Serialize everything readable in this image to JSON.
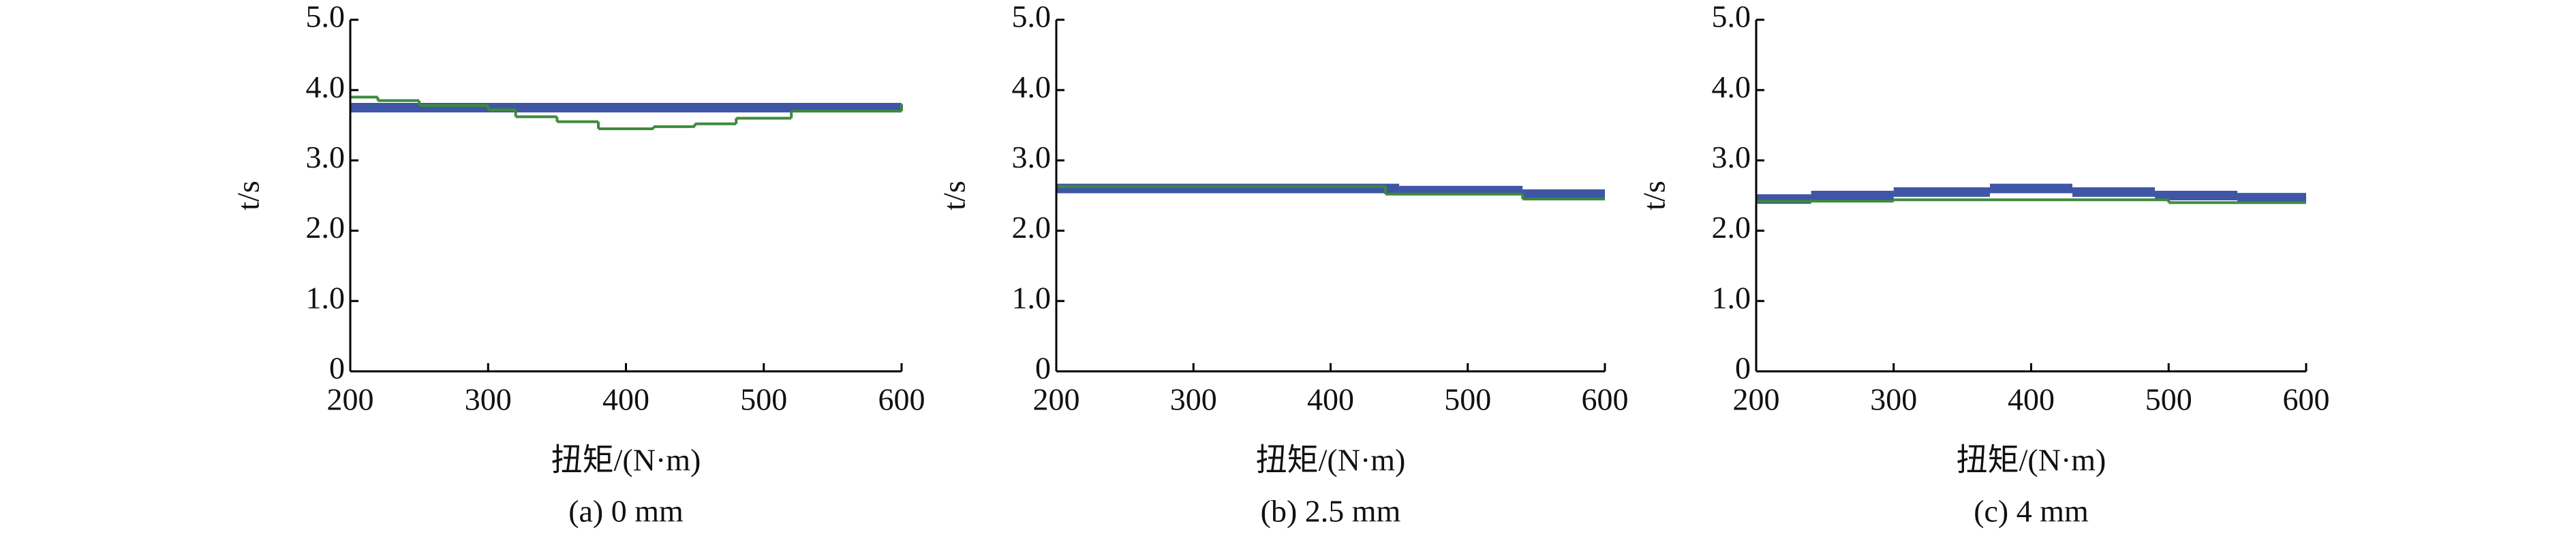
{
  "chart_data": [
    {
      "type": "line",
      "step": "post",
      "xlabel": "扭矩/(N·m)",
      "ylabel": "t/s",
      "caption": "(a) 0 mm",
      "xlim": [
        200,
        600
      ],
      "xticks": [
        200,
        300,
        400,
        500,
        600
      ],
      "ylim": [
        0,
        5
      ],
      "yticks": [
        0,
        {
          "value": 1,
          "label": "1.0"
        },
        {
          "value": 2,
          "label": "2.0"
        },
        {
          "value": 3,
          "label": "3.0"
        },
        {
          "value": 4,
          "label": "4.0"
        },
        {
          "value": 5,
          "label": "5.0"
        }
      ],
      "series": [
        {
          "color": "#3f55a5",
          "linewidth": 14,
          "x": [
            200,
            600
          ],
          "values": [
            3.75,
            3.75
          ]
        },
        {
          "color": "#3d8a3d",
          "linewidth": 4,
          "x": [
            200,
            220,
            250,
            300,
            320,
            350,
            380,
            420,
            450,
            480,
            520,
            600
          ],
          "values": [
            3.9,
            3.85,
            3.78,
            3.72,
            3.62,
            3.55,
            3.45,
            3.48,
            3.52,
            3.6,
            3.7,
            3.8
          ]
        }
      ]
    },
    {
      "type": "line",
      "step": "post",
      "xlabel": "扭矩/(N·m)",
      "ylabel": "t/s",
      "caption": "(b) 2.5 mm",
      "xlim": [
        200,
        600
      ],
      "xticks": [
        200,
        300,
        400,
        500,
        600
      ],
      "ylim": [
        0,
        5
      ],
      "yticks": [
        0,
        {
          "value": 1,
          "label": "1.0"
        },
        {
          "value": 2,
          "label": "2.0"
        },
        {
          "value": 3,
          "label": "3.0"
        },
        {
          "value": 4,
          "label": "4.0"
        },
        {
          "value": 5,
          "label": "5.0"
        }
      ],
      "series": [
        {
          "color": "#3f55a5",
          "linewidth": 14,
          "x": [
            200,
            450,
            540,
            600
          ],
          "values": [
            2.6,
            2.57,
            2.52,
            2.52
          ]
        },
        {
          "color": "#3d8a3d",
          "linewidth": 4,
          "x": [
            200,
            440,
            540,
            600
          ],
          "values": [
            2.63,
            2.52,
            2.45,
            2.45
          ]
        }
      ]
    },
    {
      "type": "line",
      "step": "post",
      "xlabel": "扭矩/(N·m)",
      "ylabel": "t/s",
      "caption": "(c) 4 mm",
      "xlim": [
        200,
        600
      ],
      "xticks": [
        200,
        300,
        400,
        500,
        600
      ],
      "ylim": [
        0,
        5
      ],
      "yticks": [
        0,
        {
          "value": 1,
          "label": "1.0"
        },
        {
          "value": 2,
          "label": "2.0"
        },
        {
          "value": 3,
          "label": "3.0"
        },
        {
          "value": 4,
          "label": "4.0"
        },
        {
          "value": 5,
          "label": "5.0"
        }
      ],
      "series": [
        {
          "color": "#3f55a5",
          "linewidth": 14,
          "x": [
            200,
            240,
            300,
            370,
            430,
            490,
            550,
            600
          ],
          "values": [
            2.45,
            2.5,
            2.55,
            2.6,
            2.55,
            2.5,
            2.47,
            2.47
          ]
        },
        {
          "color": "#3d8a3d",
          "linewidth": 4,
          "x": [
            200,
            300,
            500,
            600
          ],
          "values": [
            2.42,
            2.44,
            2.4,
            2.4
          ]
        }
      ]
    }
  ]
}
